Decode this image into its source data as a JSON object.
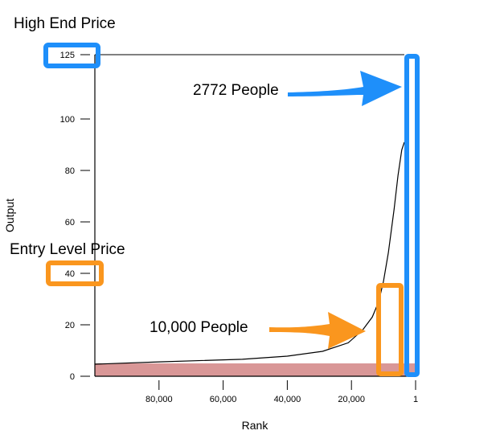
{
  "chart_data": {
    "type": "line",
    "title": "",
    "xlabel": "Rank",
    "ylabel": "Output",
    "xlim": [
      100000,
      1
    ],
    "ylim": [
      0,
      125
    ],
    "x_reversed": true,
    "grid": false,
    "x_ticks": [
      {
        "value": 80000,
        "label": "80,000"
      },
      {
        "value": 60000,
        "label": "60,000"
      },
      {
        "value": 40000,
        "label": "40,000"
      },
      {
        "value": 20000,
        "label": "20,000"
      },
      {
        "value": 1,
        "label": "1"
      }
    ],
    "y_ticks": [
      {
        "value": 0,
        "label": "0"
      },
      {
        "value": 20,
        "label": "20"
      },
      {
        "value": 40,
        "label": "40"
      },
      {
        "value": 60,
        "label": "60"
      },
      {
        "value": 80,
        "label": "80"
      },
      {
        "value": 100,
        "label": "100"
      },
      {
        "value": 125,
        "label": "125"
      }
    ],
    "series": [
      {
        "x": [
          100000,
          80000,
          54000,
          40000,
          29000,
          21000,
          16500,
          13500,
          11500,
          10000,
          8500,
          6700,
          5500,
          4300,
          3500
        ],
        "y": [
          4.7,
          5.6,
          6.6,
          7.8,
          9.7,
          13,
          18,
          23,
          29,
          37,
          48,
          65,
          78,
          88,
          91
        ]
      }
    ],
    "band": {
      "y0": 0,
      "y1": 5,
      "color": "#d99797"
    },
    "annotations": {
      "high_end_label": "High End Price",
      "high_end_count": "2772 People",
      "entry_label": "Entry Level Price",
      "entry_count": "10,000 People",
      "blue": "#1e8ffa",
      "orange": "#fa961e"
    }
  }
}
